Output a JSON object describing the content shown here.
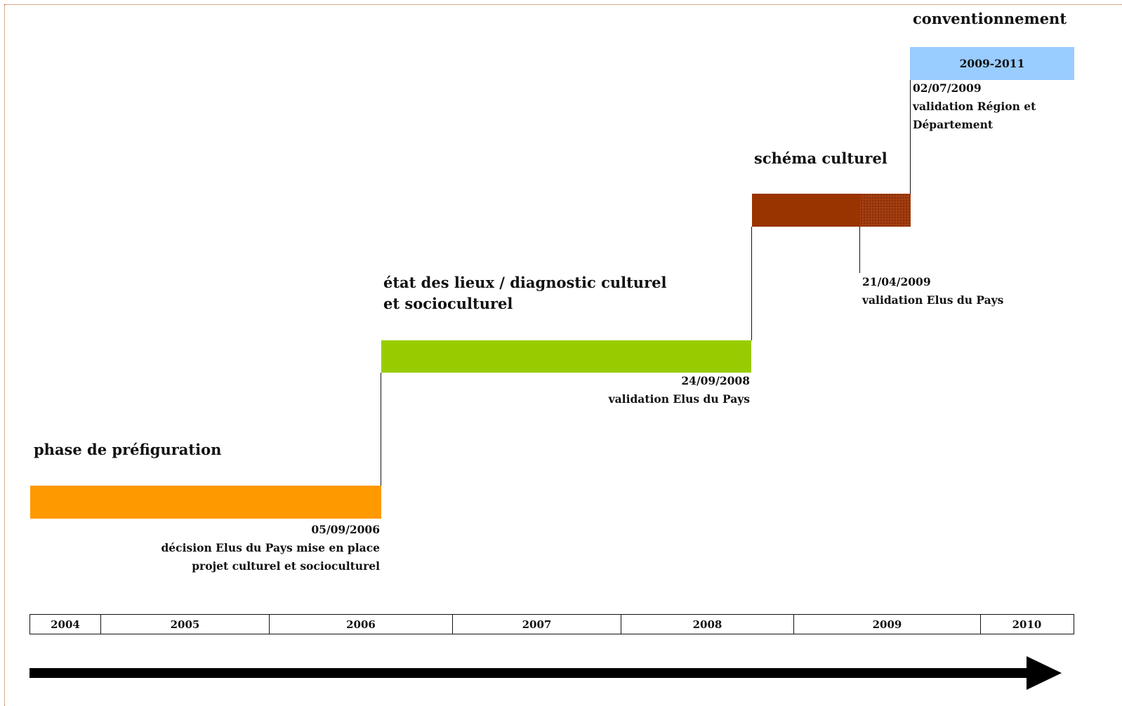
{
  "phases": [
    {
      "title": "phase de préfiguration",
      "color": "#ff9900"
    },
    {
      "title": "état des lieux / diagnostic culturel et socioculturel",
      "color": "#99cc00"
    },
    {
      "title": "schéma culturel",
      "color": "#993300"
    },
    {
      "title": "conventionnement",
      "color": "#99ccff",
      "period": "2009-2011"
    }
  ],
  "milestones": [
    {
      "date": "05/09/2006",
      "lines": [
        "décision Elus du Pays mise en place",
        "projet culturel et socioculturel"
      ]
    },
    {
      "date": "24/09/2008",
      "lines": [
        "validation  Elus du Pays"
      ]
    },
    {
      "date": "21/04/2009",
      "lines": [
        "validation  Elus du Pays"
      ]
    },
    {
      "date": "02/07/2009",
      "lines": [
        "validation  Région et",
        "Département"
      ]
    }
  ],
  "years": [
    "2004",
    "2005",
    "2006",
    "2007",
    "2008",
    "2009",
    "2010"
  ]
}
